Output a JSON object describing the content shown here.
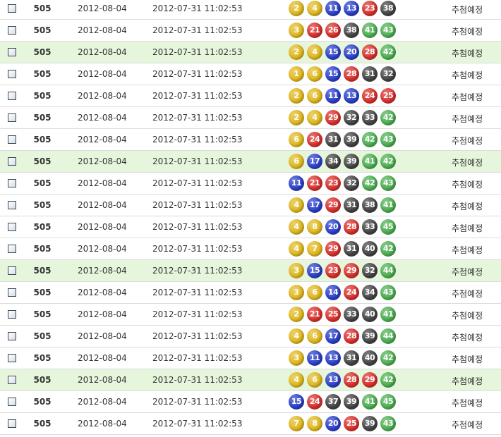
{
  "colors": {
    "y": "#e0b81e",
    "b": "#2a3fc9",
    "r": "#d9302c",
    "k": "#444444",
    "g": "#4caf50",
    "highlight": "#e6f6dc"
  },
  "rows": [
    {
      "round": "505",
      "draw_date": "2012-08-04",
      "created": "2012-07-31 11:02:53",
      "numbers": [
        2,
        4,
        11,
        13,
        23,
        38
      ],
      "status": "추첨예정",
      "highlight": false
    },
    {
      "round": "505",
      "draw_date": "2012-08-04",
      "created": "2012-07-31 11:02:53",
      "numbers": [
        3,
        21,
        26,
        38,
        41,
        43
      ],
      "status": "추첨예정",
      "highlight": false
    },
    {
      "round": "505",
      "draw_date": "2012-08-04",
      "created": "2012-07-31 11:02:53",
      "numbers": [
        2,
        4,
        15,
        20,
        28,
        42
      ],
      "status": "추첨예정",
      "highlight": true
    },
    {
      "round": "505",
      "draw_date": "2012-08-04",
      "created": "2012-07-31 11:02:53",
      "numbers": [
        1,
        6,
        15,
        28,
        31,
        32
      ],
      "status": "추첨예정",
      "highlight": false
    },
    {
      "round": "505",
      "draw_date": "2012-08-04",
      "created": "2012-07-31 11:02:53",
      "numbers": [
        2,
        6,
        11,
        13,
        24,
        25
      ],
      "status": "추첨예정",
      "highlight": false
    },
    {
      "round": "505",
      "draw_date": "2012-08-04",
      "created": "2012-07-31 11:02:53",
      "numbers": [
        2,
        4,
        29,
        32,
        33,
        42
      ],
      "status": "추첨예정",
      "highlight": false
    },
    {
      "round": "505",
      "draw_date": "2012-08-04",
      "created": "2012-07-31 11:02:53",
      "numbers": [
        6,
        24,
        31,
        39,
        42,
        43
      ],
      "status": "추첨예정",
      "highlight": false
    },
    {
      "round": "505",
      "draw_date": "2012-08-04",
      "created": "2012-07-31 11:02:53",
      "numbers": [
        6,
        17,
        34,
        39,
        41,
        42
      ],
      "status": "추첨예정",
      "highlight": true
    },
    {
      "round": "505",
      "draw_date": "2012-08-04",
      "created": "2012-07-31 11:02:53",
      "numbers": [
        11,
        21,
        23,
        32,
        42,
        43
      ],
      "status": "추첨예정",
      "highlight": false
    },
    {
      "round": "505",
      "draw_date": "2012-08-04",
      "created": "2012-07-31 11:02:53",
      "numbers": [
        4,
        17,
        29,
        31,
        38,
        41
      ],
      "status": "추첨예정",
      "highlight": false
    },
    {
      "round": "505",
      "draw_date": "2012-08-04",
      "created": "2012-07-31 11:02:53",
      "numbers": [
        4,
        8,
        20,
        28,
        33,
        45
      ],
      "status": "추첨예정",
      "highlight": false
    },
    {
      "round": "505",
      "draw_date": "2012-08-04",
      "created": "2012-07-31 11:02:53",
      "numbers": [
        4,
        7,
        29,
        31,
        40,
        42
      ],
      "status": "추첨예정",
      "highlight": false
    },
    {
      "round": "505",
      "draw_date": "2012-08-04",
      "created": "2012-07-31 11:02:53",
      "numbers": [
        3,
        15,
        23,
        29,
        32,
        44
      ],
      "status": "추첨예정",
      "highlight": true
    },
    {
      "round": "505",
      "draw_date": "2012-08-04",
      "created": "2012-07-31 11:02:53",
      "numbers": [
        3,
        6,
        14,
        24,
        34,
        43
      ],
      "status": "추첨예정",
      "highlight": false
    },
    {
      "round": "505",
      "draw_date": "2012-08-04",
      "created": "2012-07-31 11:02:53",
      "numbers": [
        2,
        21,
        25,
        33,
        40,
        41
      ],
      "status": "추첨예정",
      "highlight": false
    },
    {
      "round": "505",
      "draw_date": "2012-08-04",
      "created": "2012-07-31 11:02:53",
      "numbers": [
        4,
        6,
        17,
        28,
        39,
        44
      ],
      "status": "추첨예정",
      "highlight": false
    },
    {
      "round": "505",
      "draw_date": "2012-08-04",
      "created": "2012-07-31 11:02:53",
      "numbers": [
        3,
        11,
        13,
        31,
        40,
        42
      ],
      "status": "추첨예정",
      "highlight": false
    },
    {
      "round": "505",
      "draw_date": "2012-08-04",
      "created": "2012-07-31 11:02:53",
      "numbers": [
        4,
        6,
        13,
        28,
        29,
        42
      ],
      "status": "추첨예정",
      "highlight": true
    },
    {
      "round": "505",
      "draw_date": "2012-08-04",
      "created": "2012-07-31 11:02:53",
      "numbers": [
        15,
        24,
        37,
        39,
        41,
        45
      ],
      "status": "추첨예정",
      "highlight": false
    },
    {
      "round": "505",
      "draw_date": "2012-08-04",
      "created": "2012-07-31 11:02:53",
      "numbers": [
        7,
        8,
        20,
        25,
        39,
        43
      ],
      "status": "추첨예정",
      "highlight": false
    }
  ]
}
